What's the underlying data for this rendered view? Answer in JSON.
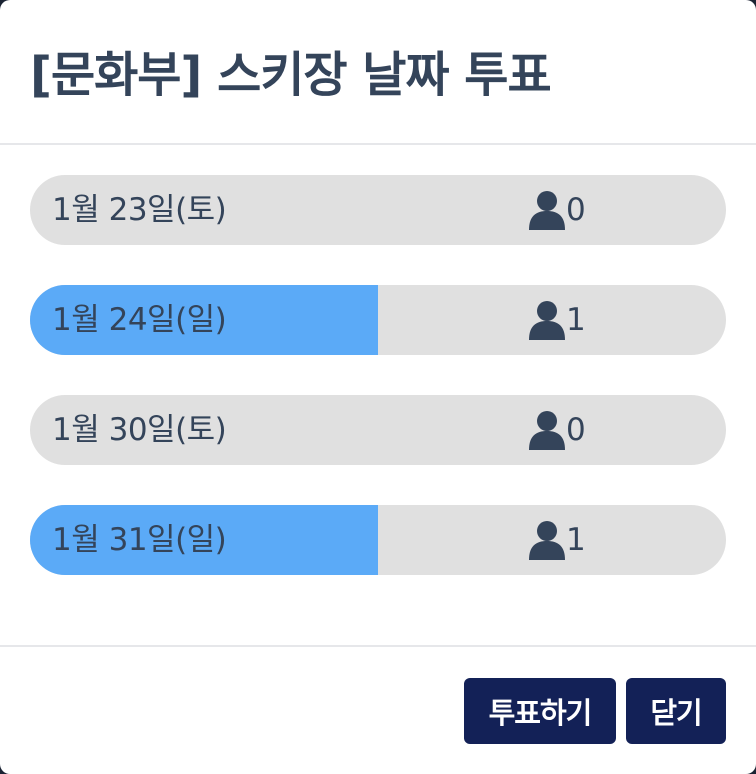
{
  "dialog": {
    "title": "[문화부] 스키장 날짜 투표"
  },
  "options": [
    {
      "label": "1월 23일(토)",
      "count": "0",
      "fill_fraction": 0
    },
    {
      "label": "1월 24일(일)",
      "count": "1",
      "fill_fraction": 0.5
    },
    {
      "label": "1월 30일(토)",
      "count": "0",
      "fill_fraction": 0
    },
    {
      "label": "1월 31일(일)",
      "count": "1",
      "fill_fraction": 0.5
    }
  ],
  "footer": {
    "vote_label": "투표하기",
    "close_label": "닫기"
  },
  "colors": {
    "fill": "#5baaf7",
    "track": "#e0e0e0",
    "text": "#34445a",
    "button": "#132157"
  },
  "icons": {
    "count_icon": "user-icon"
  }
}
